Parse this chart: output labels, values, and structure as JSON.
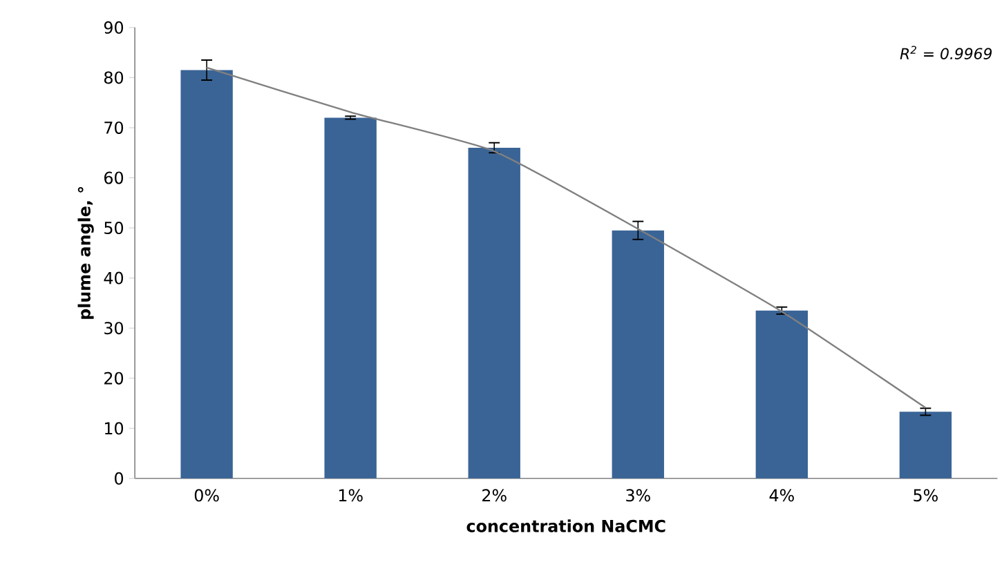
{
  "chart_data": {
    "type": "bar",
    "xlabel": "concentration NaCMC",
    "ylabel": "plume angle, °",
    "categories": [
      "0%",
      "1%",
      "2%",
      "3%",
      "4%",
      "5%"
    ],
    "series": [
      {
        "color": "#3a6496",
        "values": [
          81.5,
          72,
          66,
          49.5,
          33.5,
          13.3
        ],
        "errors": [
          2,
          0.3,
          1,
          1.8,
          0.7,
          0.7
        ]
      },
      {
        "type": "line",
        "color": "#808080",
        "values": [
          82,
          73.1,
          65.3,
          49.8,
          33.3,
          14.1
        ]
      }
    ],
    "ylim": [
      0,
      90
    ],
    "yticks": [
      0,
      10,
      20,
      30,
      40,
      50,
      60,
      70,
      80,
      90
    ],
    "grid": false,
    "annotations": [
      "R$^{2}$ = 0.9969"
    ]
  }
}
